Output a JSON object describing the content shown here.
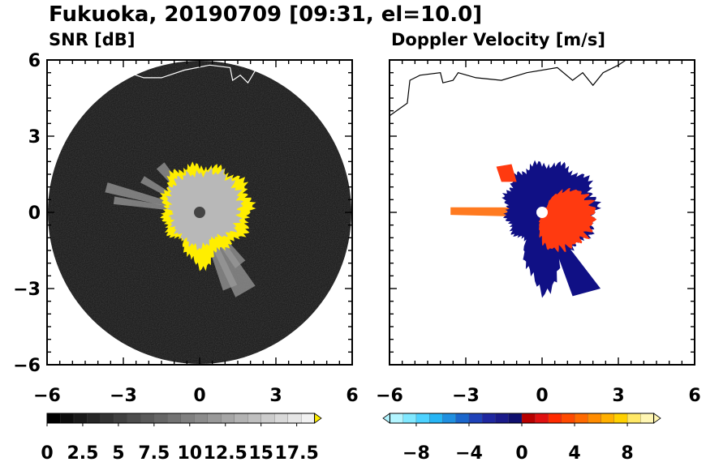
{
  "figure": {
    "title": "Fukuoka, 20190709 [09:31, el=10.0]"
  },
  "chart_data": [
    {
      "type": "heatmap",
      "title": "SNR [dB]",
      "xlim": [
        -6,
        6
      ],
      "ylim": [
        -6,
        6
      ],
      "xticks": [
        "−6",
        "−3",
        "0",
        "3",
        "6"
      ],
      "yticks": [
        "6",
        "3",
        "0",
        "−3",
        "−6"
      ],
      "grid": false,
      "colorbar": {
        "range": [
          0,
          18.75
        ],
        "tick_labels": [
          "0",
          "2.5",
          "5",
          "7.5",
          "10",
          "12.5",
          "15",
          "17.5"
        ],
        "tick_values": [
          0,
          2.5,
          5,
          7.5,
          10,
          12.5,
          15,
          17.5
        ],
        "colors_low_to_high": [
          "#000000",
          "#0d0d0d",
          "#1a1a1a",
          "#262626",
          "#333333",
          "#404040",
          "#4d4d4d",
          "#5a5a5a",
          "#666666",
          "#737373",
          "#808080",
          "#8c8c8c",
          "#999999",
          "#a6a6a6",
          "#b3b3b3",
          "#bfbfbf",
          "#cccccc",
          "#d9d9d9",
          "#e6e6e6",
          "#f2f2f2"
        ],
        "overflow_color": "#ffee00",
        "extend": "max"
      },
      "field_colors": {
        "background": "#141414",
        "echo": "#b8b8b8",
        "strong": "#ffee00",
        "center": "#444444"
      }
    },
    {
      "type": "heatmap",
      "title": "Doppler Velocity [m/s]",
      "xlim": [
        -6,
        6
      ],
      "ylim": [
        -6,
        6
      ],
      "xticks": [
        "−6",
        "−3",
        "0",
        "3",
        "6"
      ],
      "yticks": [],
      "grid": false,
      "colorbar": {
        "range": [
          -10,
          10
        ],
        "tick_labels": [
          "−8",
          "−4",
          "0",
          "4",
          "8"
        ],
        "tick_values": [
          -8,
          -4,
          0,
          4,
          8
        ],
        "colors_low_to_high": [
          "#b3f5ff",
          "#80e8ff",
          "#4dd2ff",
          "#26b5f5",
          "#1f8fe0",
          "#1a66cc",
          "#1f42b8",
          "#1f27a0",
          "#1a1a8a",
          "#0f0f6e",
          "#b80000",
          "#e01010",
          "#ff2a00",
          "#ff4a00",
          "#ff6a00",
          "#ff8c00",
          "#ffb000",
          "#ffd000",
          "#ffe866",
          "#fff6b3"
        ],
        "extend": "both"
      },
      "field_colors": {
        "toward": "#101085",
        "away": "#ff3a10",
        "far_away": "#ff7a20"
      }
    }
  ]
}
